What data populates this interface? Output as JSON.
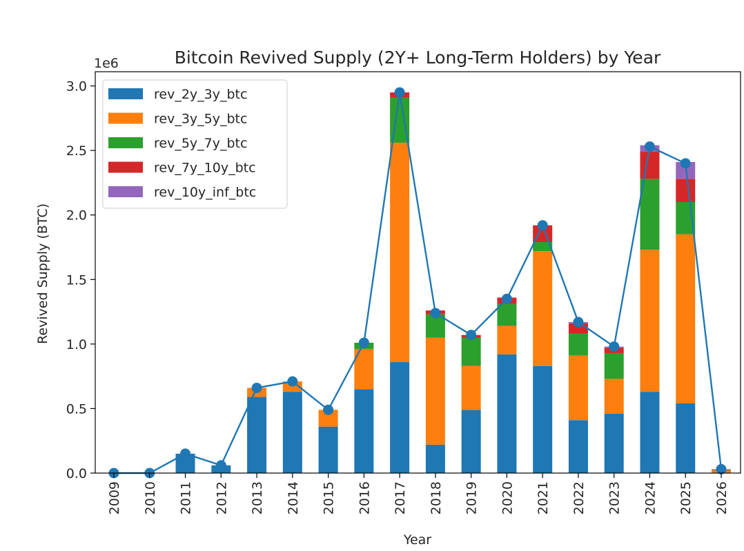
{
  "chart_data": {
    "type": "bar",
    "stacked": true,
    "title": "Bitcoin Revived Supply (2Y+ Long-Term Holders) by Year",
    "xlabel": "Year",
    "ylabel": "Revived Supply (BTC)",
    "y_multiplier_label": "1e6",
    "ylim": [
      0,
      3.0
    ],
    "yticks": [
      0.0,
      0.5,
      1.0,
      1.5,
      2.0,
      2.5,
      3.0
    ],
    "ytick_labels": [
      "0.0",
      "0.5",
      "1.0",
      "1.5",
      "2.0",
      "2.5",
      "3.0"
    ],
    "categories": [
      "2009",
      "2010",
      "2011",
      "2012",
      "2013",
      "2014",
      "2015",
      "2016",
      "2017",
      "2018",
      "2019",
      "2020",
      "2021",
      "2022",
      "2023",
      "2024",
      "2025",
      "2026"
    ],
    "legend_position": "top-left",
    "series": [
      {
        "name": "rev_2y_3y_btc",
        "color": "#1f77b4",
        "values": [
          0,
          0,
          0.15,
          0.06,
          0.59,
          0.63,
          0.36,
          0.65,
          0.86,
          0.22,
          0.49,
          0.92,
          0.83,
          0.41,
          0.46,
          0.63,
          0.54,
          0.003
        ]
      },
      {
        "name": "rev_3y_5y_btc",
        "color": "#ff7f0e",
        "values": [
          0,
          0,
          0,
          0,
          0.07,
          0.08,
          0.13,
          0.31,
          1.7,
          0.83,
          0.34,
          0.22,
          0.89,
          0.5,
          0.27,
          1.1,
          1.31,
          0.02
        ]
      },
      {
        "name": "rev_5y_7y_btc",
        "color": "#2ca02c",
        "values": [
          0,
          0,
          0,
          0,
          0,
          0,
          0,
          0.05,
          0.35,
          0.18,
          0.22,
          0.17,
          0.07,
          0.17,
          0.2,
          0.55,
          0.25,
          0.003
        ]
      },
      {
        "name": "rev_7y_10y_btc",
        "color": "#d62728",
        "values": [
          0,
          0,
          0,
          0,
          0,
          0,
          0,
          0,
          0.04,
          0.03,
          0.02,
          0.05,
          0.13,
          0.08,
          0.04,
          0.21,
          0.18,
          0.003
        ]
      },
      {
        "name": "rev_10y_inf_btc",
        "color": "#9467bd",
        "values": [
          0,
          0,
          0,
          0,
          0,
          0,
          0,
          0,
          0,
          0,
          0,
          0,
          0,
          0.01,
          0.01,
          0.05,
          0.13,
          0.001
        ]
      }
    ],
    "total_line": {
      "color": "#1f77b4",
      "values": [
        0,
        0,
        0.15,
        0.06,
        0.66,
        0.71,
        0.49,
        1.01,
        2.95,
        1.24,
        1.07,
        1.35,
        1.92,
        1.17,
        0.98,
        2.53,
        2.4,
        0.03
      ]
    }
  }
}
